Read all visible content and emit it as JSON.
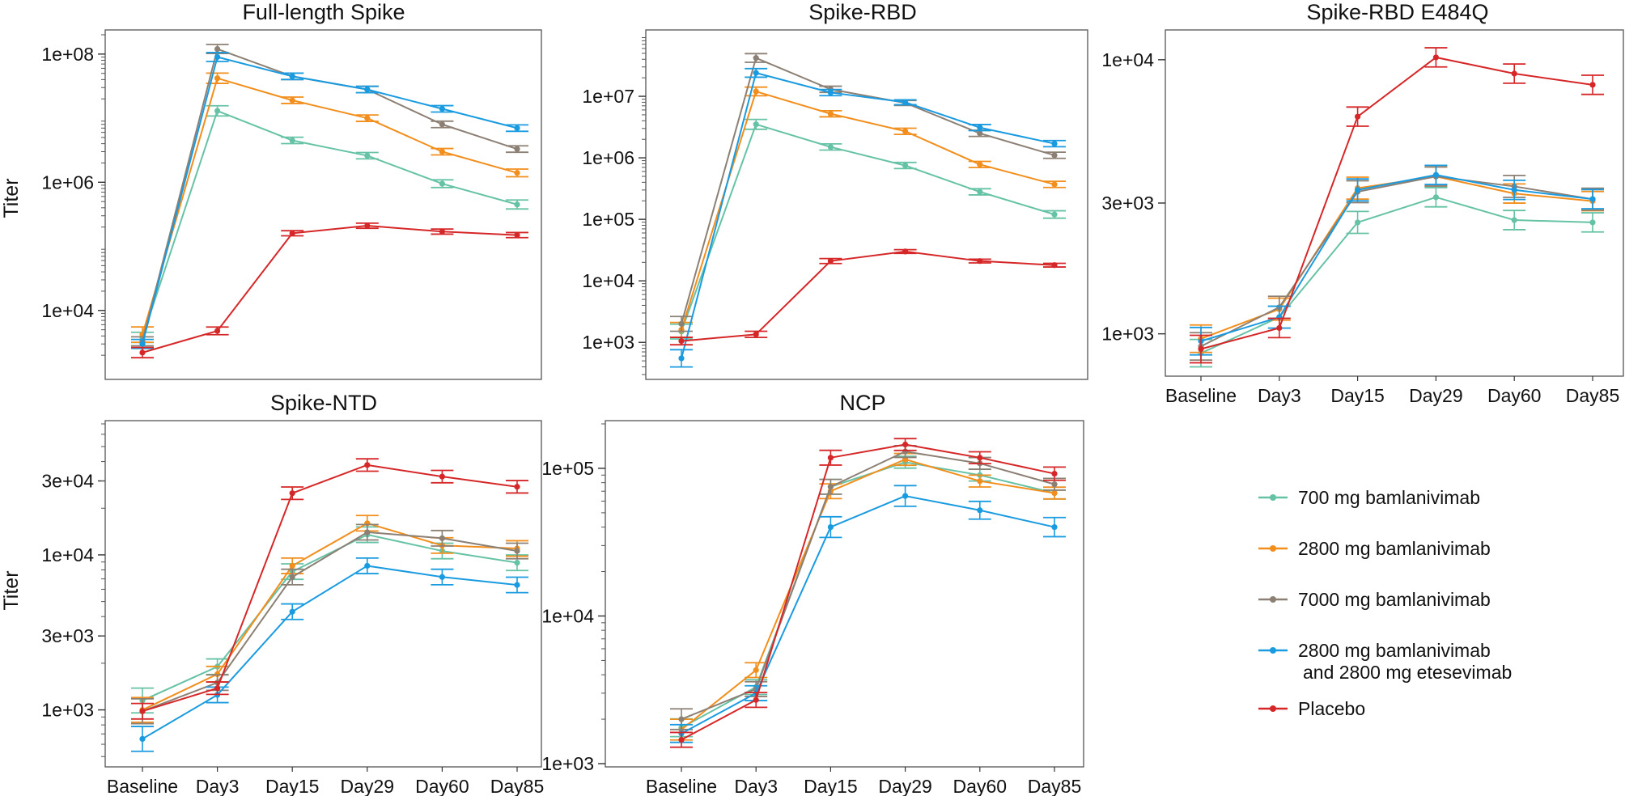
{
  "figure": {
    "y_axis_label": "Titer",
    "time_points": [
      "Baseline",
      "Day3",
      "Day15",
      "Day29",
      "Day60",
      "Day85"
    ]
  },
  "legend": [
    {
      "key": "bam700",
      "label": "700 mg bamlanivimab",
      "color": "#66c2a5"
    },
    {
      "key": "bam2800",
      "label": "2800 mg bamlanivimab",
      "color": "#f28e1c"
    },
    {
      "key": "bam7000",
      "label": "7000 mg bamlanivimab",
      "color": "#8c8075"
    },
    {
      "key": "combo",
      "label": "2800 mg bamlanivimab",
      "label2": "and 2800 mg etesevimab",
      "color": "#1a9be0"
    },
    {
      "key": "placebo",
      "label": "Placebo",
      "color": "#d62728"
    }
  ],
  "chart_data": [
    {
      "id": "full-length-spike",
      "type": "line",
      "scale": "log",
      "title": "Full-length Spike",
      "ylabel": "Titer",
      "ylim": [
        1000,
        200000000
      ],
      "tick_values": [
        10000,
        1000000,
        100000000
      ],
      "tick_labels": [
        "1e+04",
        "1e+06",
        "1e+08"
      ],
      "show_xticks": false,
      "categories": [
        "Baseline",
        "Day3",
        "Day15",
        "Day29",
        "Day60",
        "Day85"
      ],
      "series": [
        {
          "name": "700 mg bamlanivimab",
          "values": [
            3800,
            13000000,
            4500000,
            2600000,
            950000,
            450000
          ],
          "err": [
            0.08,
            0.08,
            0.05,
            0.05,
            0.06,
            0.07
          ]
        },
        {
          "name": "2800 mg bamlanivimab",
          "values": [
            4200,
            42000000,
            19000000,
            10000000,
            3000000,
            1400000
          ],
          "err": [
            0.12,
            0.08,
            0.05,
            0.05,
            0.05,
            0.06
          ]
        },
        {
          "name": "7000 mg bamlanivimab",
          "values": [
            3300,
            120000000,
            45000000,
            28000000,
            8000000,
            3300000
          ],
          "err": [
            0.07,
            0.07,
            0.05,
            0.05,
            0.05,
            0.05
          ]
        },
        {
          "name": "2800 mg bamlanivimab and 2800 mg etesevimab",
          "values": [
            3000,
            90000000,
            45000000,
            28000000,
            14000000,
            7000000
          ],
          "err": [
            0.07,
            0.07,
            0.05,
            0.05,
            0.05,
            0.05
          ]
        },
        {
          "name": "Placebo",
          "values": [
            2200,
            4800,
            160000,
            210000,
            170000,
            150000
          ],
          "err": [
            0.08,
            0.06,
            0.04,
            0.04,
            0.04,
            0.04
          ]
        }
      ]
    },
    {
      "id": "spike-rbd",
      "type": "line",
      "scale": "log",
      "title": "Spike-RBD",
      "ylabel": "",
      "ylim": [
        300,
        100000000
      ],
      "tick_values": [
        1000,
        10000,
        100000,
        1000000,
        10000000
      ],
      "tick_labels": [
        "1e+03",
        "1e+04",
        "1e+05",
        "1e+06",
        "1e+07"
      ],
      "show_xticks": false,
      "categories": [
        "Baseline",
        "Day3",
        "Day15",
        "Day29",
        "Day60",
        "Day85"
      ],
      "series": [
        {
          "name": "700 mg bamlanivimab",
          "values": [
            1500,
            3500000,
            1500000,
            750000,
            280000,
            120000
          ],
          "err": [
            0.12,
            0.08,
            0.05,
            0.05,
            0.05,
            0.06
          ]
        },
        {
          "name": "2800 mg bamlanivimab",
          "values": [
            1600,
            12000000,
            5200000,
            2700000,
            780000,
            370000
          ],
          "err": [
            0.12,
            0.07,
            0.05,
            0.05,
            0.05,
            0.05
          ]
        },
        {
          "name": "7000 mg bamlanivimab",
          "values": [
            2000,
            42000000,
            13000000,
            7800000,
            2500000,
            1100000
          ],
          "err": [
            0.12,
            0.07,
            0.05,
            0.04,
            0.05,
            0.05
          ]
        },
        {
          "name": "2800 mg bamlanivimab and 2800 mg etesevimab",
          "values": [
            550,
            24000000,
            11500000,
            8000000,
            3100000,
            1700000
          ],
          "err": [
            0.14,
            0.07,
            0.05,
            0.04,
            0.05,
            0.05
          ]
        },
        {
          "name": "Placebo",
          "values": [
            1050,
            1350,
            21000,
            30000,
            21000,
            18000
          ],
          "err": [
            0.06,
            0.05,
            0.04,
            0.03,
            0.03,
            0.03
          ]
        }
      ]
    },
    {
      "id": "spike-rbd-e484q",
      "type": "line",
      "scale": "log",
      "title": "Spike-RBD E484Q",
      "ylabel": "",
      "ylim": [
        720,
        12500
      ],
      "tick_values": [
        1000,
        3000,
        10000
      ],
      "tick_labels": [
        "1e+03",
        "3e+03",
        "1e+04"
      ],
      "show_xticks": true,
      "categories": [
        "Baseline",
        "Day3",
        "Day15",
        "Day29",
        "Day60",
        "Day85"
      ],
      "series": [
        {
          "name": "700 mg bamlanivimab",
          "values": [
            850,
            1150,
            2550,
            3150,
            2600,
            2550
          ],
          "err": [
            0.05,
            0.04,
            0.04,
            0.035,
            0.035,
            0.035
          ]
        },
        {
          "name": "2800 mg bamlanivimab",
          "values": [
            960,
            1230,
            3400,
            3750,
            3250,
            3050
          ],
          "err": [
            0.05,
            0.04,
            0.04,
            0.035,
            0.035,
            0.035
          ]
        },
        {
          "name": "7000 mg bamlanivimab",
          "values": [
            900,
            1250,
            3300,
            3750,
            3450,
            3100
          ],
          "err": [
            0.05,
            0.04,
            0.04,
            0.035,
            0.04,
            0.04
          ]
        },
        {
          "name": "2800 mg bamlanivimab and 2800 mg etesevimab",
          "values": [
            940,
            1150,
            3350,
            3800,
            3350,
            3100
          ],
          "err": [
            0.05,
            0.04,
            0.04,
            0.035,
            0.035,
            0.035
          ]
        },
        {
          "name": "Placebo",
          "values": [
            880,
            1050,
            6200,
            10200,
            8900,
            8100
          ],
          "err": [
            0.05,
            0.035,
            0.035,
            0.035,
            0.035,
            0.035
          ]
        }
      ]
    },
    {
      "id": "spike-ntd",
      "type": "line",
      "scale": "log",
      "title": "Spike-NTD",
      "ylabel": "Titer",
      "ylim": [
        450,
        70000
      ],
      "tick_values": [
        1000,
        3000,
        10000,
        30000
      ],
      "tick_labels": [
        "1e+03",
        "3e+03",
        "1e+04",
        "3e+04"
      ],
      "show_xticks": true,
      "categories": [
        "Baseline",
        "Day3",
        "Day15",
        "Day29",
        "Day60",
        "Day85"
      ],
      "series": [
        {
          "name": "700 mg bamlanivimab",
          "values": [
            1150,
            1900,
            7800,
            13500,
            10600,
            8900
          ],
          "err": [
            0.08,
            0.05,
            0.05,
            0.05,
            0.05,
            0.05
          ]
        },
        {
          "name": "2800 mg bamlanivimab",
          "values": [
            1000,
            1700,
            8500,
            16000,
            11500,
            11000
          ],
          "err": [
            0.08,
            0.05,
            0.05,
            0.05,
            0.05,
            0.05
          ]
        },
        {
          "name": "7000 mg bamlanivimab",
          "values": [
            980,
            1500,
            7200,
            14000,
            12800,
            10600
          ],
          "err": [
            0.08,
            0.05,
            0.05,
            0.05,
            0.05,
            0.05
          ]
        },
        {
          "name": "2800 mg bamlanivimab and 2800 mg etesevimab",
          "values": [
            650,
            1250,
            4300,
            8500,
            7200,
            6400
          ],
          "err": [
            0.08,
            0.05,
            0.05,
            0.05,
            0.05,
            0.05
          ]
        },
        {
          "name": "Placebo",
          "values": [
            980,
            1380,
            25000,
            38000,
            32000,
            27500
          ],
          "err": [
            0.05,
            0.04,
            0.04,
            0.04,
            0.04,
            0.04
          ]
        }
      ]
    },
    {
      "id": "ncp",
      "type": "line",
      "scale": "log",
      "title": "NCP",
      "ylabel": "",
      "ylim": [
        1000,
        200000
      ],
      "tick_values": [
        1000,
        10000,
        100000
      ],
      "tick_labels": [
        "1e+03",
        "1e+04",
        "1e+05"
      ],
      "show_xticks": true,
      "categories": [
        "Baseline",
        "Day3",
        "Day15",
        "Day29",
        "Day60",
        "Day85"
      ],
      "series": [
        {
          "name": "700 mg bamlanivimab",
          "values": [
            1750,
            3300,
            75000,
            110000,
            90000,
            68000
          ],
          "err": [
            0.06,
            0.05,
            0.05,
            0.04,
            0.04,
            0.04
          ]
        },
        {
          "name": "2800 mg bamlanivimab",
          "values": [
            1700,
            4300,
            70000,
            115000,
            82000,
            68000
          ],
          "err": [
            0.07,
            0.05,
            0.05,
            0.04,
            0.04,
            0.04
          ]
        },
        {
          "name": "7000 mg bamlanivimab",
          "values": [
            2000,
            3200,
            75000,
            130000,
            108000,
            78000
          ],
          "err": [
            0.07,
            0.05,
            0.05,
            0.04,
            0.04,
            0.04
          ]
        },
        {
          "name": "2800 mg bamlanivimab and 2800 mg etesevimab",
          "values": [
            1600,
            3000,
            40000,
            65000,
            52000,
            40000
          ],
          "err": [
            0.06,
            0.05,
            0.07,
            0.07,
            0.06,
            0.065
          ]
        },
        {
          "name": "Placebo",
          "values": [
            1450,
            2700,
            118000,
            145000,
            118000,
            92000
          ],
          "err": [
            0.05,
            0.05,
            0.05,
            0.04,
            0.04,
            0.045
          ]
        }
      ]
    }
  ]
}
